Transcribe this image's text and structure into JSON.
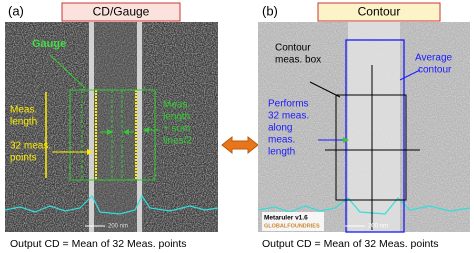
{
  "panel_a": {
    "label": "(a)",
    "title": "CD/Gauge",
    "gauge": "Gauge",
    "meas_length": [
      "Meas.",
      "length"
    ],
    "meas_points": [
      "32 meas.",
      "points"
    ],
    "sum_lines": [
      "Meas.",
      "length",
      "+ sum",
      "lines/2"
    ],
    "scale": "200 nm",
    "caption": "Output CD =  Mean of 32 Meas. points"
  },
  "panel_b": {
    "label": "(b)",
    "title": "Contour",
    "box": [
      "Contour",
      "meas. box"
    ],
    "average": [
      "Average",
      "contour"
    ],
    "performs": [
      "Performs",
      "32 meas.",
      "along",
      "meas.",
      "length"
    ],
    "scale": "200 nm",
    "logo": [
      "Metaruler v1.6",
      "GLOBALFOUNDRIES"
    ],
    "caption": "Output CD =  Mean of 32 Meas. points"
  }
}
